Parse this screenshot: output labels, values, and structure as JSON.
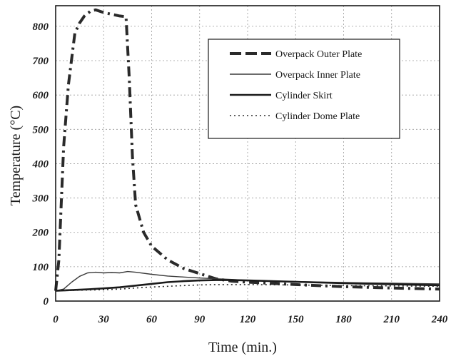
{
  "chart_data": {
    "type": "line",
    "xlabel": "Time (min.)",
    "ylabel": "Temperature (°C)",
    "xlim": [
      0,
      240
    ],
    "ylim": [
      0,
      860
    ],
    "xticks": [
      0,
      30,
      60,
      90,
      120,
      150,
      180,
      210,
      240
    ],
    "yticks": [
      0,
      100,
      200,
      300,
      400,
      500,
      600,
      700,
      800
    ],
    "grid": true,
    "legend_position": "top-right",
    "series": [
      {
        "name": "Overpack Outer Plate",
        "style": "dashdot-thick",
        "color": "#2a2a2a",
        "x": [
          0,
          2,
          5,
          8,
          12,
          15,
          18,
          22,
          25,
          30,
          35,
          40,
          44,
          46,
          48,
          50,
          55,
          60,
          70,
          80,
          90,
          100,
          110,
          120,
          150,
          180,
          210,
          240
        ],
        "y": [
          30,
          120,
          450,
          630,
          780,
          810,
          830,
          845,
          848,
          840,
          835,
          830,
          828,
          650,
          420,
          280,
          200,
          160,
          120,
          95,
          80,
          65,
          58,
          55,
          48,
          42,
          38,
          35
        ]
      },
      {
        "name": "Overpack Inner Plate",
        "style": "solid-thin",
        "color": "#3a3a3a",
        "x": [
          0,
          5,
          10,
          15,
          20,
          25,
          30,
          35,
          40,
          45,
          50,
          60,
          70,
          80,
          90,
          100,
          110,
          120,
          150,
          180,
          210,
          240
        ],
        "y": [
          30,
          35,
          55,
          72,
          82,
          84,
          82,
          83,
          82,
          86,
          84,
          78,
          73,
          70,
          67,
          65,
          63,
          60,
          57,
          54,
          52,
          50
        ]
      },
      {
        "name": "Cylinder Skirt",
        "style": "solid-thick",
        "color": "#1a1a1a",
        "x": [
          0,
          10,
          20,
          30,
          40,
          50,
          60,
          70,
          80,
          90,
          100,
          110,
          120,
          150,
          180,
          210,
          240
        ],
        "y": [
          30,
          32,
          34,
          37,
          40,
          45,
          50,
          55,
          58,
          60,
          61,
          61,
          60,
          56,
          52,
          49,
          46
        ]
      },
      {
        "name": "Cylinder Dome Plate",
        "style": "dotted",
        "color": "#2a2a2a",
        "x": [
          0,
          10,
          20,
          30,
          40,
          50,
          60,
          70,
          80,
          90,
          100,
          110,
          120,
          150,
          180,
          210,
          240
        ],
        "y": [
          30,
          31,
          32,
          33,
          35,
          38,
          41,
          43,
          45,
          47,
          48,
          48,
          48,
          47,
          45,
          44,
          43
        ]
      }
    ]
  }
}
